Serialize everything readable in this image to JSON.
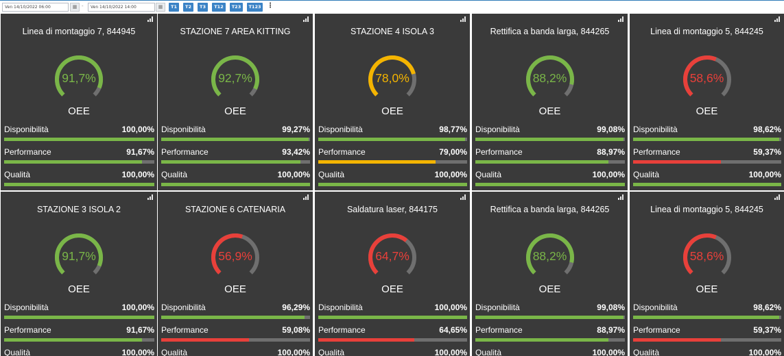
{
  "toolbar": {
    "start_date": "Ven 14/10/2022 06:00",
    "end_date": "Ven 14/10/2022 14:00",
    "separator": "-",
    "shifts": [
      "T1",
      "T2",
      "T3",
      "T12",
      "T23",
      "T123"
    ],
    "more": "⋮"
  },
  "colors": {
    "green": "#7ab648",
    "yellow": "#f4b400",
    "red": "#e8403a",
    "track": "#6f6f6f",
    "card": "#3a3a3a"
  },
  "labels": {
    "oee": "OEE",
    "availability": "Disponibilità",
    "performance": "Performance",
    "quality": "Qualità"
  },
  "cards": [
    {
      "title": "Linea di montaggio 7, 844945",
      "oee": "91,7%",
      "oee_value": 91.7,
      "color": "green",
      "availability": "100,00%",
      "availability_value": 100,
      "performance": "91,67%",
      "performance_value": 91.67,
      "quality": "100,00%",
      "quality_value": 100
    },
    {
      "title": "STAZIONE 7 AREA KITTING",
      "oee": "92,7%",
      "oee_value": 92.7,
      "color": "green",
      "availability": "99,27%",
      "availability_value": 99.27,
      "performance": "93,42%",
      "performance_value": 93.42,
      "quality": "100,00%",
      "quality_value": 100
    },
    {
      "title": "STAZIONE 4 ISOLA 3",
      "oee": "78,0%",
      "oee_value": 78.0,
      "color": "yellow",
      "availability": "98,77%",
      "availability_value": 98.77,
      "performance": "79,00%",
      "performance_value": 79.0,
      "quality": "100,00%",
      "quality_value": 100
    },
    {
      "title": "Rettifica a banda larga, 844265",
      "oee": "88,2%",
      "oee_value": 88.2,
      "color": "green",
      "availability": "99,08%",
      "availability_value": 99.08,
      "performance": "88,97%",
      "performance_value": 88.97,
      "quality": "100,00%",
      "quality_value": 100
    },
    {
      "title": "Linea di montaggio 5, 844245",
      "oee": "58,6%",
      "oee_value": 58.6,
      "color": "red",
      "availability": "98,62%",
      "availability_value": 98.62,
      "performance": "59,37%",
      "performance_value": 59.37,
      "quality": "100,00%",
      "quality_value": 100
    },
    {
      "title": "STAZIONE 3 ISOLA 2",
      "oee": "91,7%",
      "oee_value": 91.7,
      "color": "green",
      "availability": "100,00%",
      "availability_value": 100,
      "performance": "91,67%",
      "performance_value": 91.67,
      "quality": "100,00%",
      "quality_value": 100
    },
    {
      "title": "STAZIONE 6 CATENARIA",
      "oee": "56,9%",
      "oee_value": 56.9,
      "color": "red",
      "availability": "96,29%",
      "availability_value": 96.29,
      "performance": "59,08%",
      "performance_value": 59.08,
      "quality": "100,00%",
      "quality_value": 100
    },
    {
      "title": "Saldatura laser, 844175",
      "oee": "64,7%",
      "oee_value": 64.7,
      "color": "red",
      "availability": "100,00%",
      "availability_value": 100,
      "performance": "64,65%",
      "performance_value": 64.65,
      "quality": "100,00%",
      "quality_value": 100
    },
    {
      "title": "Rettifica a banda larga, 844265",
      "oee": "88,2%",
      "oee_value": 88.2,
      "color": "green",
      "availability": "99,08%",
      "availability_value": 99.08,
      "performance": "88,97%",
      "performance_value": 88.97,
      "quality": "100,00%",
      "quality_value": 100
    },
    {
      "title": "Linea di montaggio 5, 844245",
      "oee": "58,6%",
      "oee_value": 58.6,
      "color": "red",
      "availability": "98,62%",
      "availability_value": 98.62,
      "performance": "59,37%",
      "performance_value": 59.37,
      "quality": "100,00%",
      "quality_value": 100
    }
  ]
}
